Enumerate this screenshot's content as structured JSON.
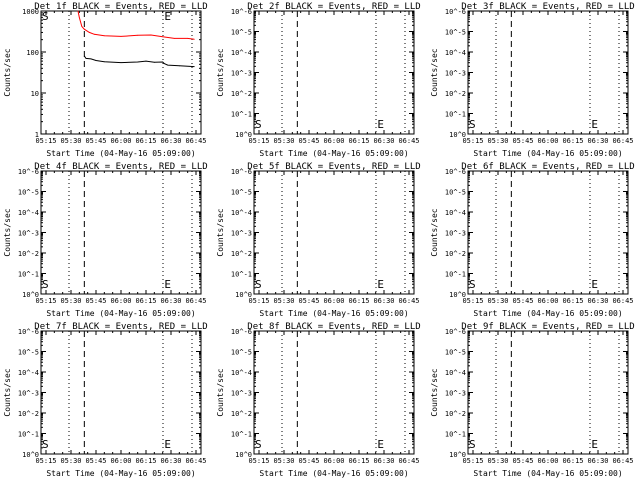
{
  "colors": {
    "events": "#000000",
    "lld": "#ff0000",
    "axis": "#000000",
    "background": "#ffffff"
  },
  "chart_data": [
    {
      "type": "line",
      "title": "Det 1f BLACK = Events, RED = LLD",
      "xlabel": "Start Time (04-May-16 05:09:00)",
      "ylabel": "Counts/sec",
      "x_units": "minutes after 05:00",
      "xlim": [
        12,
        108
      ],
      "xticks": [
        15,
        30,
        45,
        60,
        75,
        90,
        105
      ],
      "xtick_labels": [
        "05:15",
        "05:30",
        "05:45",
        "06:00",
        "06:15",
        "06:30",
        "06:45"
      ],
      "yscale": "log",
      "ytick_labels": [
        "1",
        "10",
        "100",
        "1000"
      ],
      "vlines": [
        {
          "x": 28.8,
          "style": "dotted"
        },
        {
          "x": 38,
          "style": "dashed"
        },
        {
          "x": 85.2,
          "style": "dotted"
        },
        {
          "x": 102.6,
          "style": "dotted"
        }
      ],
      "markers": [
        {
          "text": "S",
          "pos": "top-left"
        },
        {
          "text": "E",
          "pos": "top",
          "x": 86
        }
      ],
      "series": [
        {
          "name": "LLD",
          "color": "red",
          "x": [
            34.2,
            35,
            36.5,
            38,
            41,
            44,
            50,
            60,
            70,
            78,
            85,
            92,
            100,
            104
          ],
          "values": [
            1200,
            700,
            420,
            360,
            300,
            270,
            250,
            240,
            255,
            260,
            235,
            215,
            215,
            205
          ]
        },
        {
          "name": "Events",
          "color": "black",
          "x": [
            38,
            39,
            42,
            45,
            50,
            60,
            70,
            75,
            80,
            85,
            86,
            88,
            95,
            104
          ],
          "values": [
            80,
            70,
            68,
            62,
            58,
            55,
            57,
            60,
            56,
            57,
            52,
            48,
            46,
            44
          ]
        }
      ]
    },
    {
      "type": "line",
      "title": "Det 2f BLACK = Events, RED = LLD",
      "xlabel": "Start Time (04-May-16 05:09:00)",
      "ylabel": "Counts/sec",
      "xlim": [
        12,
        108
      ],
      "xticks": [
        15,
        30,
        45,
        60,
        75,
        90,
        105
      ],
      "xtick_labels": [
        "05:15",
        "05:30",
        "05:45",
        "06:00",
        "06:15",
        "06:30",
        "06:45"
      ],
      "yscale": "log",
      "ytick_labels": [
        "10^0",
        "10^-1",
        "10^-2",
        "10^-3",
        "10^-4",
        "10^-5",
        "10^-6"
      ],
      "vlines": [
        {
          "x": 28.8,
          "style": "dotted"
        },
        {
          "x": 38,
          "style": "dashed"
        },
        {
          "x": 85.2,
          "style": "dotted"
        },
        {
          "x": 102.6,
          "style": "dotted"
        }
      ],
      "markers": [
        {
          "text": "S",
          "pos": "bottom-left"
        },
        {
          "text": "E",
          "pos": "bottom",
          "x": 86
        }
      ],
      "series": []
    },
    {
      "type": "line",
      "title": "Det 3f BLACK = Events, RED = LLD",
      "xlabel": "Start Time (04-May-16 05:09:00)",
      "ylabel": "Counts/sec",
      "xlim": [
        12,
        108
      ],
      "xticks": [
        15,
        30,
        45,
        60,
        75,
        90,
        105
      ],
      "xtick_labels": [
        "05:15",
        "05:30",
        "05:45",
        "06:00",
        "06:15",
        "06:30",
        "06:45"
      ],
      "yscale": "log",
      "ytick_labels": [
        "10^0",
        "10^-1",
        "10^-2",
        "10^-3",
        "10^-4",
        "10^-5",
        "10^-6"
      ],
      "vlines": [
        {
          "x": 28.8,
          "style": "dotted"
        },
        {
          "x": 38,
          "style": "dashed"
        },
        {
          "x": 85.2,
          "style": "dotted"
        },
        {
          "x": 102.6,
          "style": "dotted"
        }
      ],
      "markers": [
        {
          "text": "S",
          "pos": "bottom-left"
        },
        {
          "text": "E",
          "pos": "bottom",
          "x": 86
        }
      ],
      "series": []
    },
    {
      "type": "line",
      "title": "Det 4f BLACK = Events, RED = LLD",
      "xlabel": "Start Time (04-May-16 05:09:00)",
      "ylabel": "Counts/sec",
      "xlim": [
        12,
        108
      ],
      "xticks": [
        15,
        30,
        45,
        60,
        75,
        90,
        105
      ],
      "xtick_labels": [
        "05:15",
        "05:30",
        "05:45",
        "06:00",
        "06:15",
        "06:30",
        "06:45"
      ],
      "yscale": "log",
      "ytick_labels": [
        "10^0",
        "10^-1",
        "10^-2",
        "10^-3",
        "10^-4",
        "10^-5",
        "10^-6"
      ],
      "vlines": [
        {
          "x": 28.8,
          "style": "dotted"
        },
        {
          "x": 38,
          "style": "dashed"
        },
        {
          "x": 85.2,
          "style": "dotted"
        },
        {
          "x": 102.6,
          "style": "dotted"
        }
      ],
      "markers": [
        {
          "text": "S",
          "pos": "bottom-left"
        },
        {
          "text": "E",
          "pos": "bottom",
          "x": 86
        }
      ],
      "series": []
    },
    {
      "type": "line",
      "title": "Det 5f BLACK = Events, RED = LLD",
      "xlabel": "Start Time (04-May-16 05:09:00)",
      "ylabel": "Counts/sec",
      "xlim": [
        12,
        108
      ],
      "xticks": [
        15,
        30,
        45,
        60,
        75,
        90,
        105
      ],
      "xtick_labels": [
        "05:15",
        "05:30",
        "05:45",
        "06:00",
        "06:15",
        "06:30",
        "06:45"
      ],
      "yscale": "log",
      "ytick_labels": [
        "10^0",
        "10^-1",
        "10^-2",
        "10^-3",
        "10^-4",
        "10^-5",
        "10^-6"
      ],
      "vlines": [
        {
          "x": 28.8,
          "style": "dotted"
        },
        {
          "x": 38,
          "style": "dashed"
        },
        {
          "x": 85.2,
          "style": "dotted"
        },
        {
          "x": 102.6,
          "style": "dotted"
        }
      ],
      "markers": [
        {
          "text": "S",
          "pos": "bottom-left"
        },
        {
          "text": "E",
          "pos": "bottom",
          "x": 86
        }
      ],
      "series": []
    },
    {
      "type": "line",
      "title": "Det 6f BLACK = Events, RED = LLD",
      "xlabel": "Start Time (04-May-16 05:09:00)",
      "ylabel": "Counts/sec",
      "xlim": [
        12,
        108
      ],
      "xticks": [
        15,
        30,
        45,
        60,
        75,
        90,
        105
      ],
      "xtick_labels": [
        "05:15",
        "05:30",
        "05:45",
        "06:00",
        "06:15",
        "06:30",
        "06:45"
      ],
      "yscale": "log",
      "ytick_labels": [
        "10^0",
        "10^-1",
        "10^-2",
        "10^-3",
        "10^-4",
        "10^-5",
        "10^-6"
      ],
      "vlines": [
        {
          "x": 28.8,
          "style": "dotted"
        },
        {
          "x": 38,
          "style": "dashed"
        },
        {
          "x": 85.2,
          "style": "dotted"
        },
        {
          "x": 102.6,
          "style": "dotted"
        }
      ],
      "markers": [
        {
          "text": "S",
          "pos": "bottom-left"
        },
        {
          "text": "E",
          "pos": "bottom",
          "x": 86
        }
      ],
      "series": []
    },
    {
      "type": "line",
      "title": "Det 7f BLACK = Events, RED = LLD",
      "xlabel": "Start Time (04-May-16 05:09:00)",
      "ylabel": "Counts/sec",
      "xlim": [
        12,
        108
      ],
      "xticks": [
        15,
        30,
        45,
        60,
        75,
        90,
        105
      ],
      "xtick_labels": [
        "05:15",
        "05:30",
        "05:45",
        "06:00",
        "06:15",
        "06:30",
        "06:45"
      ],
      "yscale": "log",
      "ytick_labels": [
        "10^0",
        "10^-1",
        "10^-2",
        "10^-3",
        "10^-4",
        "10^-5",
        "10^-6"
      ],
      "vlines": [
        {
          "x": 28.8,
          "style": "dotted"
        },
        {
          "x": 38,
          "style": "dashed"
        },
        {
          "x": 85.2,
          "style": "dotted"
        },
        {
          "x": 102.6,
          "style": "dotted"
        }
      ],
      "markers": [
        {
          "text": "S",
          "pos": "bottom-left"
        },
        {
          "text": "E",
          "pos": "bottom",
          "x": 86
        }
      ],
      "series": []
    },
    {
      "type": "line",
      "title": "Det 8f BLACK = Events, RED = LLD",
      "xlabel": "Start Time (04-May-16 05:09:00)",
      "ylabel": "Counts/sec",
      "xlim": [
        12,
        108
      ],
      "xticks": [
        15,
        30,
        45,
        60,
        75,
        90,
        105
      ],
      "xtick_labels": [
        "05:15",
        "05:30",
        "05:45",
        "06:00",
        "06:15",
        "06:30",
        "06:45"
      ],
      "yscale": "log",
      "ytick_labels": [
        "10^0",
        "10^-1",
        "10^-2",
        "10^-3",
        "10^-4",
        "10^-5",
        "10^-6"
      ],
      "vlines": [
        {
          "x": 28.8,
          "style": "dotted"
        },
        {
          "x": 38,
          "style": "dashed"
        },
        {
          "x": 85.2,
          "style": "dotted"
        },
        {
          "x": 102.6,
          "style": "dotted"
        }
      ],
      "markers": [
        {
          "text": "S",
          "pos": "bottom-left"
        },
        {
          "text": "E",
          "pos": "bottom",
          "x": 86
        }
      ],
      "series": []
    },
    {
      "type": "line",
      "title": "Det 9f BLACK = Events, RED = LLD",
      "xlabel": "Start Time (04-May-16 05:09:00)",
      "ylabel": "Counts/sec",
      "xlim": [
        12,
        108
      ],
      "xticks": [
        15,
        30,
        45,
        60,
        75,
        90,
        105
      ],
      "xtick_labels": [
        "05:15",
        "05:30",
        "05:45",
        "06:00",
        "06:15",
        "06:30",
        "06:45"
      ],
      "yscale": "log",
      "ytick_labels": [
        "10^0",
        "10^-1",
        "10^-2",
        "10^-3",
        "10^-4",
        "10^-5",
        "10^-6"
      ],
      "vlines": [
        {
          "x": 28.8,
          "style": "dotted"
        },
        {
          "x": 38,
          "style": "dashed"
        },
        {
          "x": 85.2,
          "style": "dotted"
        },
        {
          "x": 102.6,
          "style": "dotted"
        }
      ],
      "markers": [
        {
          "text": "S",
          "pos": "bottom-left"
        },
        {
          "text": "E",
          "pos": "bottom",
          "x": 86
        }
      ],
      "series": []
    }
  ]
}
